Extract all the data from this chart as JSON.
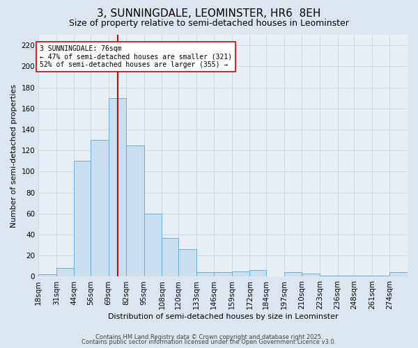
{
  "title1": "3, SUNNINGDALE, LEOMINSTER, HR6  8EH",
  "title2": "Size of property relative to semi-detached houses in Leominster",
  "xlabel": "Distribution of semi-detached houses by size in Leominster",
  "ylabel": "Number of semi-detached properties",
  "bin_labels": [
    "18sqm",
    "31sqm",
    "44sqm",
    "56sqm",
    "69sqm",
    "82sqm",
    "95sqm",
    "108sqm",
    "120sqm",
    "133sqm",
    "146sqm",
    "159sqm",
    "172sqm",
    "184sqm",
    "197sqm",
    "210sqm",
    "223sqm",
    "236sqm",
    "248sqm",
    "261sqm",
    "274sqm"
  ],
  "bin_edges": [
    18,
    31,
    44,
    56,
    69,
    82,
    95,
    108,
    120,
    133,
    146,
    159,
    172,
    184,
    197,
    210,
    223,
    236,
    248,
    261,
    274
  ],
  "bar_heights": [
    2,
    8,
    110,
    130,
    170,
    125,
    60,
    37,
    26,
    4,
    4,
    5,
    6,
    0,
    4,
    3,
    1,
    1,
    1,
    1,
    4
  ],
  "bar_color": "#c9dff0",
  "bar_edge_color": "#6aafd6",
  "vline_color": "#cc0000",
  "vline_x": 76,
  "annotation_text": "3 SUNNINGDALE: 76sqm\n← 47% of semi-detached houses are smaller (321)\n52% of semi-detached houses are larger (355) →",
  "annotation_box_color": "#ffffff",
  "annotation_box_edge": "#cc0000",
  "bg_color": "#dce6f0",
  "plot_bg_color": "#e8eef5",
  "footer1": "Contains HM Land Registry data © Crown copyright and database right 2025.",
  "footer2": "Contains public sector information licensed under the Open Government Licence v3.0.",
  "ylim": [
    0,
    230
  ],
  "yticks": [
    0,
    20,
    40,
    60,
    80,
    100,
    120,
    140,
    160,
    180,
    200,
    220
  ],
  "grid_color": "#c8d4e3",
  "title_fontsize": 11,
  "subtitle_fontsize": 9,
  "axis_label_fontsize": 8,
  "tick_fontsize": 7.5,
  "footer_fontsize": 6
}
